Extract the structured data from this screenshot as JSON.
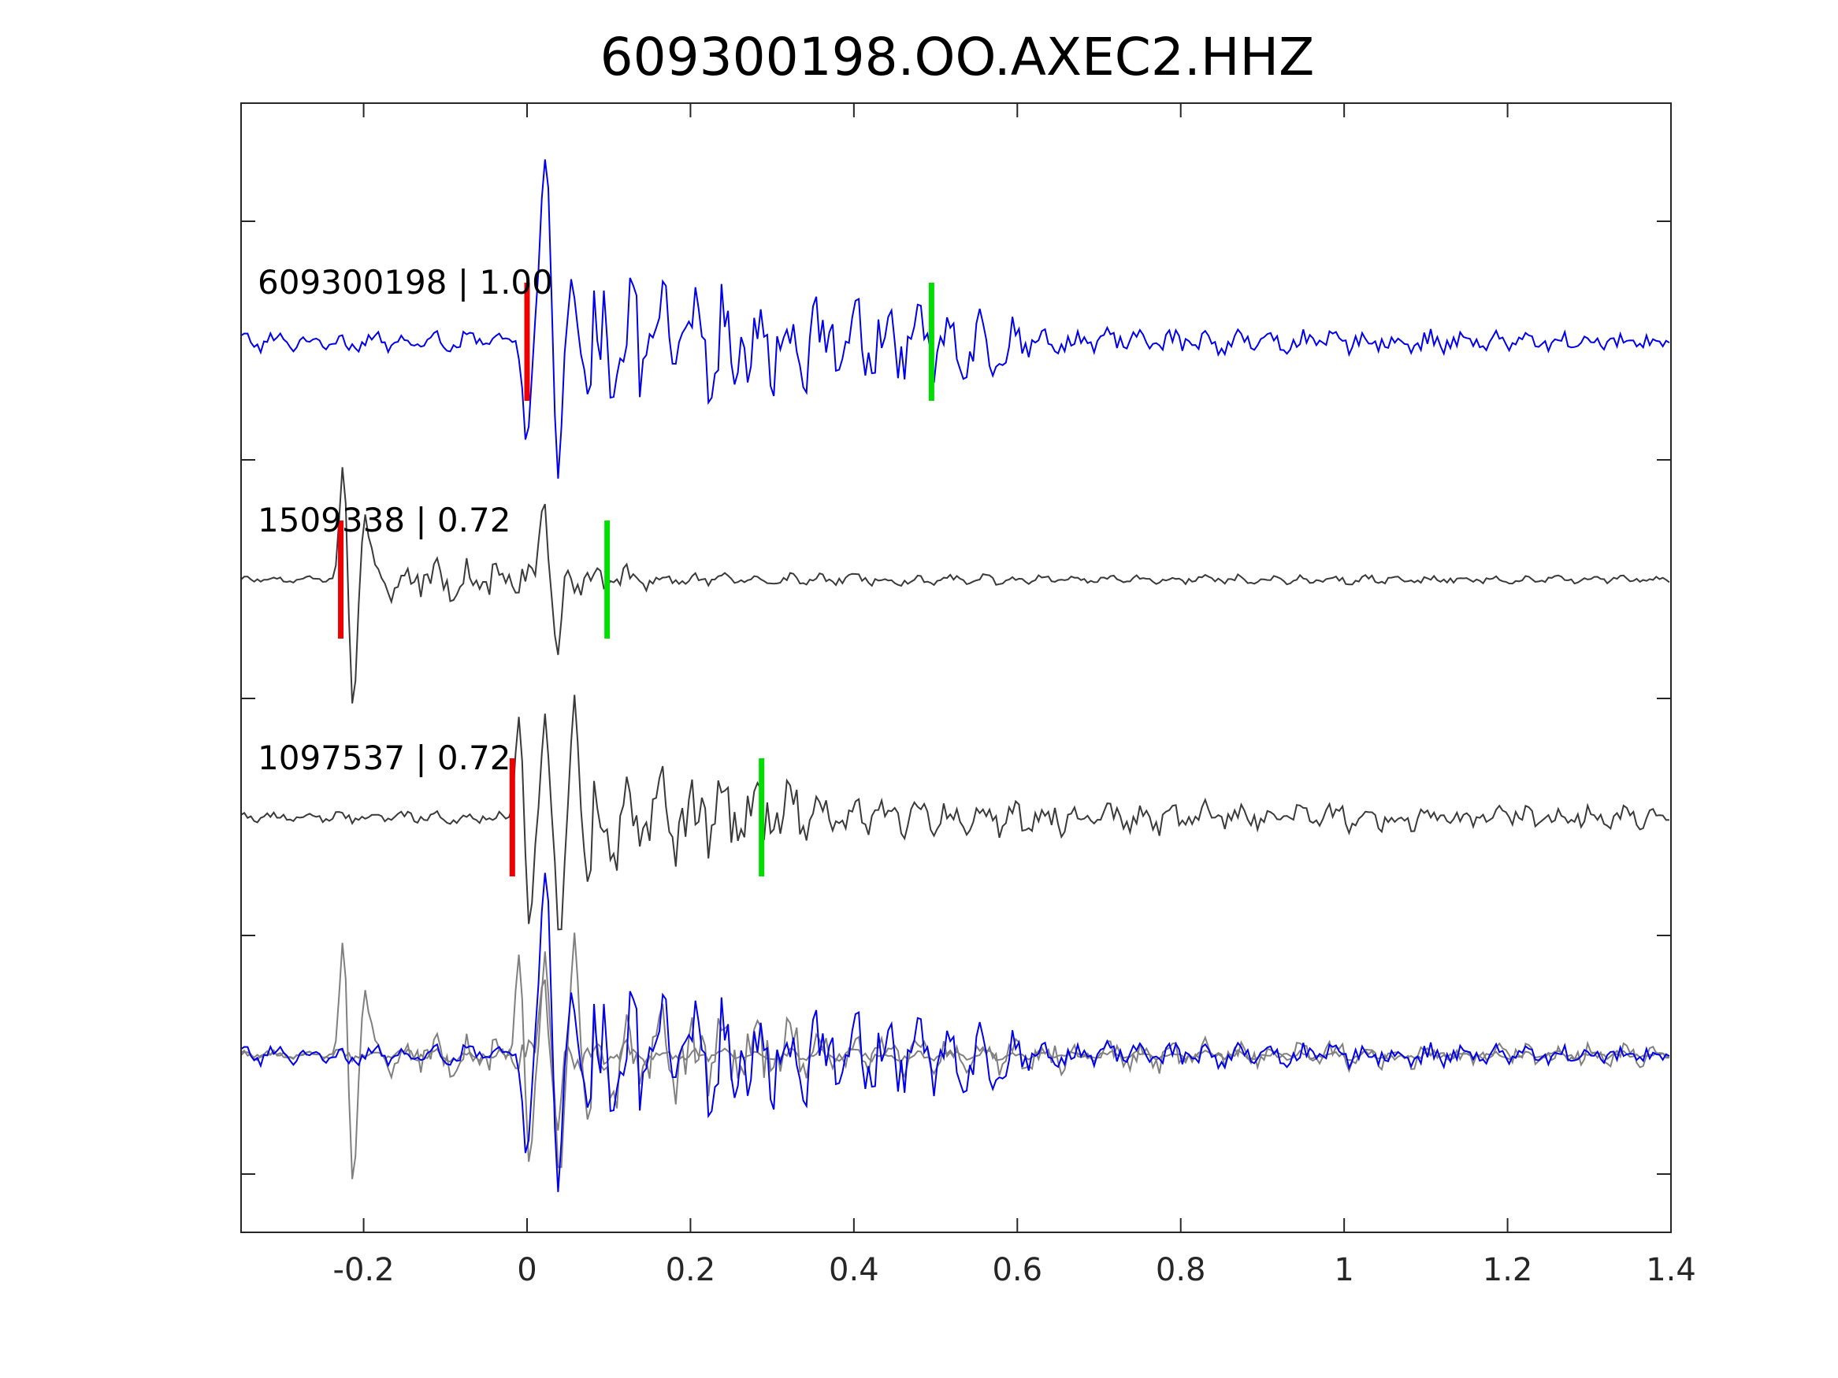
{
  "chart_data": {
    "type": "line",
    "title": "609300198.OO.AXEC2.HHZ",
    "xlabel": "",
    "ylabel": "",
    "xlim": [
      -0.35,
      1.4
    ],
    "x_ticks": [
      -0.2,
      0,
      0.2,
      0.4,
      0.6,
      0.8,
      1,
      1.2,
      1.4
    ],
    "x_tick_labels": [
      "-0.2",
      "0",
      "0.2",
      "0.4",
      "0.6",
      "0.8",
      "1",
      "1.2",
      "1.4"
    ],
    "grid": false,
    "legend": "none",
    "colors": {
      "reference_trace": "#0000ee",
      "matched_trace": "#3a3a3a",
      "overlay_gray": "#808080",
      "p_pick": "#ee0000",
      "s_pick": "#00dd00"
    },
    "traces": [
      {
        "label": "609300198 | 1.00",
        "event_id": "609300198",
        "correlation": 1.0,
        "color": "#0000ee",
        "p_pick": 0.0,
        "s_pick": 0.495,
        "events": [
          {
            "t": 0.0,
            "amp": -0.8
          },
          {
            "t": 0.018,
            "amp": 0.85
          },
          {
            "t": 0.025,
            "amp": 1.1
          },
          {
            "t": 0.038,
            "amp": -1.1
          },
          {
            "t": 0.055,
            "amp": 0.45
          },
          {
            "t": 0.075,
            "amp": -0.4
          }
        ],
        "coda": [
          {
            "start": 0.08,
            "end": 0.6,
            "amp": 0.5
          },
          {
            "start": 0.6,
            "end": 1.4,
            "amp": 0.12
          }
        ],
        "baseline_noise": 0.08
      },
      {
        "label": "1509338 | 0.72",
        "event_id": "1509338",
        "correlation": 0.72,
        "color": "#3a3a3a",
        "p_pick": -0.228,
        "s_pick": 0.098,
        "events": [
          {
            "t": -0.225,
            "amp": 0.9
          },
          {
            "t": -0.213,
            "amp": -1.0
          },
          {
            "t": -0.198,
            "amp": 0.5
          },
          {
            "t": 0.02,
            "amp": 0.65
          },
          {
            "t": 0.038,
            "amp": -0.6
          }
        ],
        "coda": [
          {
            "start": -0.19,
            "end": 0.15,
            "amp": 0.18
          },
          {
            "start": 0.15,
            "end": 1.4,
            "amp": 0.05
          }
        ],
        "baseline_noise": 0.03
      },
      {
        "label": "1097537 | 0.72",
        "event_id": "1097537",
        "correlation": 0.72,
        "color": "#3a3a3a",
        "p_pick": -0.018,
        "s_pick": 0.287,
        "events": [
          {
            "t": -0.01,
            "amp": 0.8
          },
          {
            "t": 0.003,
            "amp": -0.9
          },
          {
            "t": 0.022,
            "amp": 0.8
          },
          {
            "t": 0.04,
            "amp": -1.0
          },
          {
            "t": 0.058,
            "amp": 0.95
          },
          {
            "t": 0.075,
            "amp": -0.5
          }
        ],
        "coda": [
          {
            "start": 0.08,
            "end": 0.35,
            "amp": 0.45
          },
          {
            "start": 0.35,
            "end": 1.4,
            "amp": 0.16
          }
        ],
        "baseline_noise": 0.05
      }
    ],
    "overlay": {
      "description_in_image": false,
      "trace_colors": [
        "#808080",
        "#808080",
        "#0000ee"
      ]
    }
  }
}
